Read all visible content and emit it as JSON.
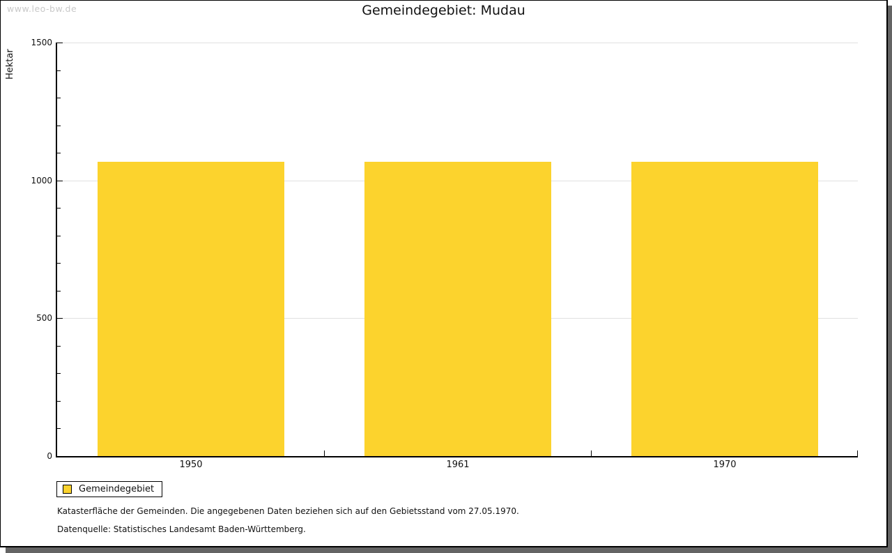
{
  "page": {
    "watermark": "www.leo-bw.de",
    "title": "Gemeindegebiet: Mudau"
  },
  "chart_data": {
    "type": "bar",
    "title": "Gemeindegebiet: Mudau",
    "categories": [
      "1950",
      "1961",
      "1970"
    ],
    "series": [
      {
        "name": "Gemeindegebiet",
        "values": [
          1067,
          1067,
          1067
        ]
      }
    ],
    "xlabel": "",
    "ylabel": "Hektar",
    "ylim": [
      0,
      1500
    ],
    "yticks": [
      0,
      500,
      1000,
      1500
    ],
    "minor_tick_step": 100,
    "grid": true,
    "legend_position": "bottom-left",
    "bar_color": "#FCD32D",
    "gridline_color": "#E0E0E0"
  },
  "legend": {
    "items": [
      {
        "label": "Gemeindegebiet",
        "color": "#FCD32D"
      }
    ]
  },
  "notes": {
    "line1": "Katasterfläche der Gemeinden. Die angegebenen Daten beziehen sich auf den Gebietsstand vom 27.05.1970.",
    "line2": "Datenquelle: Statistisches Landesamt Baden-Württemberg."
  }
}
